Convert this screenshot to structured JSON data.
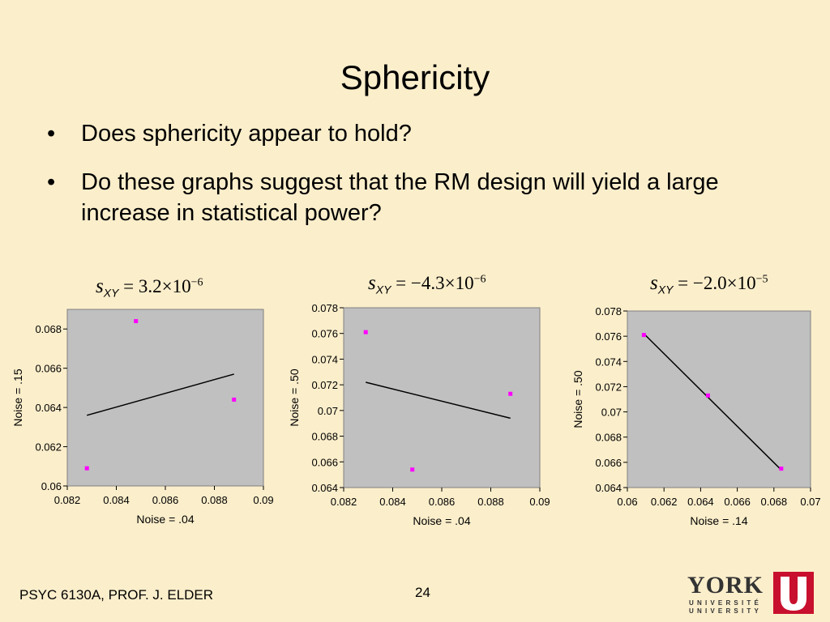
{
  "slide": {
    "title": "Sphericity",
    "bullets": [
      "Does sphericity appear to hold?",
      "Do these graphs suggest that the RM design will yield a large increase in statistical power?"
    ],
    "bullet_glyph": "•"
  },
  "formulas": [
    {
      "s": "s",
      "sub": "XY",
      "rhs": " = 3.2×10",
      "exp": "−6"
    },
    {
      "s": "s",
      "sub": "XY",
      "rhs": " = −4.3×10",
      "exp": "−6"
    },
    {
      "s": "s",
      "sub": "XY",
      "rhs": " = −2.0×10",
      "exp": "−5"
    }
  ],
  "footer": {
    "course": "PSYC 6130A, PROF. J. ELDER",
    "page": "24",
    "logo_word": "YORK",
    "logo_line1": "UNIVERSITÉ",
    "logo_line2": "UNIVERSITY",
    "logo_color": "#c8102e"
  },
  "colors": {
    "background": "#fbeecb",
    "plot_area": "#c0c0c0",
    "points": "#ff00ff",
    "line": "#000000"
  },
  "chart_data": [
    {
      "type": "scatter",
      "xlabel": "Noise = .04",
      "ylabel": "Noise = .15",
      "xlim": [
        0.082,
        0.09
      ],
      "ylim": [
        0.06,
        0.069
      ],
      "xticks": [
        0.082,
        0.084,
        0.086,
        0.088,
        0.09
      ],
      "xtick_labels": [
        "0.082",
        "0.084",
        "0.086",
        "0.088",
        "0.09"
      ],
      "yticks": [
        0.06,
        0.062,
        0.064,
        0.066,
        0.068
      ],
      "ytick_labels": [
        "0.06",
        "0.062",
        "0.064",
        "0.066",
        "0.068"
      ],
      "points": [
        [
          0.0828,
          0.0609
        ],
        [
          0.0848,
          0.0684
        ],
        [
          0.0888,
          0.0644
        ]
      ],
      "trendline": [
        [
          0.0828,
          0.0636
        ],
        [
          0.0888,
          0.0657
        ]
      ]
    },
    {
      "type": "scatter",
      "xlabel": "Noise = .04",
      "ylabel": "Noise = .50",
      "xlim": [
        0.082,
        0.09
      ],
      "ylim": [
        0.064,
        0.078
      ],
      "xticks": [
        0.082,
        0.084,
        0.086,
        0.088,
        0.09
      ],
      "xtick_labels": [
        "0.082",
        "0.084",
        "0.086",
        "0.088",
        "0.09"
      ],
      "yticks": [
        0.064,
        0.066,
        0.068,
        0.07,
        0.072,
        0.074,
        0.076,
        0.078
      ],
      "ytick_labels": [
        "0.064",
        "0.066",
        "0.068",
        "0.07",
        "0.072",
        "0.074",
        "0.076",
        "0.078"
      ],
      "points": [
        [
          0.0829,
          0.0761
        ],
        [
          0.0848,
          0.0654
        ],
        [
          0.0888,
          0.0713
        ]
      ],
      "trendline": [
        [
          0.0829,
          0.0722
        ],
        [
          0.0888,
          0.0694
        ]
      ]
    },
    {
      "type": "scatter",
      "xlabel": "Noise = .14",
      "ylabel": "Noise = .50",
      "xlim": [
        0.06,
        0.07
      ],
      "ylim": [
        0.064,
        0.078
      ],
      "xticks": [
        0.06,
        0.062,
        0.064,
        0.066,
        0.068,
        0.07
      ],
      "xtick_labels": [
        "0.06",
        "0.062",
        "0.064",
        "0.066",
        "0.068",
        "0.07"
      ],
      "yticks": [
        0.064,
        0.066,
        0.068,
        0.07,
        0.072,
        0.074,
        0.076,
        0.078
      ],
      "ytick_labels": [
        "0.064",
        "0.066",
        "0.068",
        "0.07",
        "0.072",
        "0.074",
        "0.076",
        "0.078"
      ],
      "points": [
        [
          0.0609,
          0.0761
        ],
        [
          0.0644,
          0.0713
        ],
        [
          0.0684,
          0.0655
        ]
      ],
      "trendline": [
        [
          0.0609,
          0.0762
        ],
        [
          0.0684,
          0.0654
        ]
      ]
    }
  ]
}
